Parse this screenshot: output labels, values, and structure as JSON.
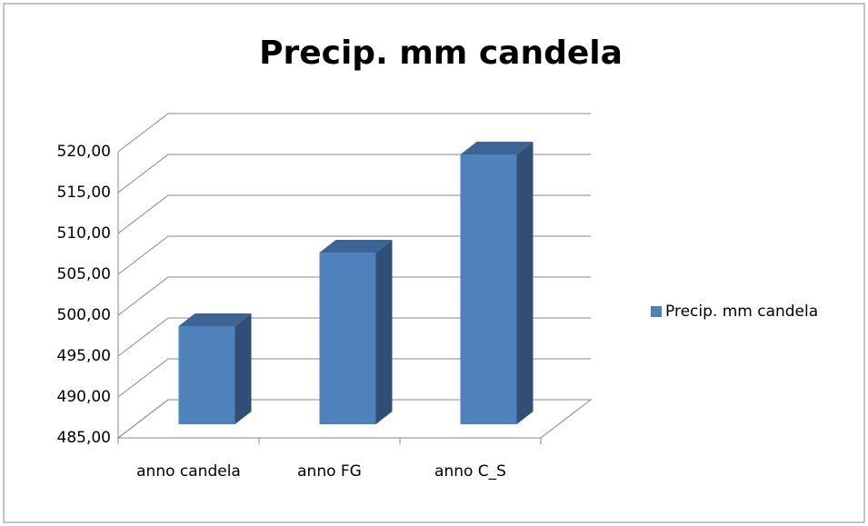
{
  "chart_data": {
    "type": "bar3d",
    "title": "Precip. mm candela",
    "categories": [
      "anno candela",
      "anno FG",
      "anno C_S"
    ],
    "series": [
      {
        "name": "Precip. mm candela",
        "color": "#4f81bd",
        "values": [
          497,
          506,
          518
        ]
      }
    ],
    "ylim": [
      485,
      520
    ],
    "yticks": [
      {
        "value": 485,
        "label": "485,00"
      },
      {
        "value": 490,
        "label": "490,00"
      },
      {
        "value": 495,
        "label": "495,00"
      },
      {
        "value": 500,
        "label": "500,00"
      },
      {
        "value": 505,
        "label": "505,00"
      },
      {
        "value": 510,
        "label": "510,00"
      },
      {
        "value": 515,
        "label": "515,00"
      },
      {
        "value": 520,
        "label": "520,00"
      }
    ],
    "grid": true,
    "legend": "right"
  }
}
